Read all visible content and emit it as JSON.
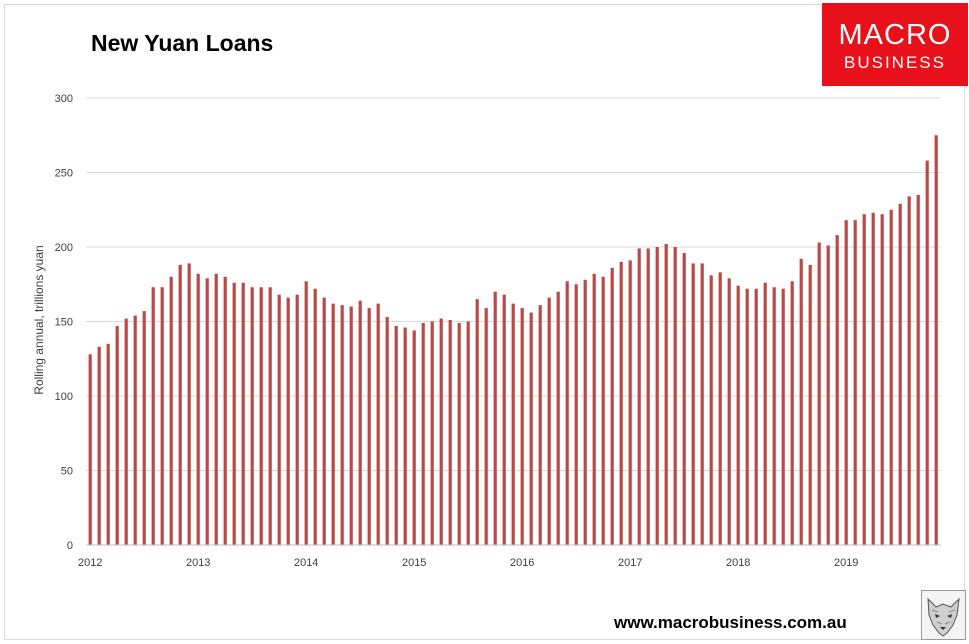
{
  "logo": {
    "line1": "MACRO",
    "line2": "BUSINESS"
  },
  "website": "www.macrobusiness.com.au",
  "colors": {
    "bar": "#b94a48",
    "grid": "#d9d9d9",
    "logo_bg": "#e8101a"
  },
  "chart_data": {
    "type": "bar",
    "title": "New Yuan Loans",
    "ylabel": "Rolling annual, trillions yuan",
    "xlabel": "",
    "ylim": [
      0,
      300
    ],
    "yticks": [
      0,
      50,
      100,
      150,
      200,
      250,
      300
    ],
    "grid": true,
    "legend": "none",
    "x_tick_labels": [
      "2012",
      "2013",
      "2014",
      "2015",
      "2016",
      "2017",
      "2018",
      "2019"
    ],
    "bars_per_year": 12,
    "values": [
      128,
      133,
      135,
      147,
      152,
      154,
      157,
      173,
      173,
      180,
      188,
      189,
      182,
      179,
      182,
      180,
      176,
      176,
      173,
      173,
      173,
      168,
      166,
      168,
      177,
      172,
      166,
      162,
      161,
      160,
      164,
      159,
      162,
      153,
      147,
      146,
      144,
      149,
      150,
      152,
      151,
      149,
      150,
      165,
      159,
      170,
      168,
      162,
      159,
      156,
      161,
      166,
      170,
      177,
      175,
      178,
      182,
      180,
      186,
      190,
      191,
      199,
      199,
      200,
      202,
      200,
      196,
      189,
      189,
      181,
      183,
      179,
      174,
      172,
      172,
      176,
      173,
      172,
      177,
      192,
      188,
      203,
      201,
      208,
      218,
      218,
      222,
      223,
      222,
      225,
      229,
      234,
      235,
      258,
      275
    ]
  }
}
